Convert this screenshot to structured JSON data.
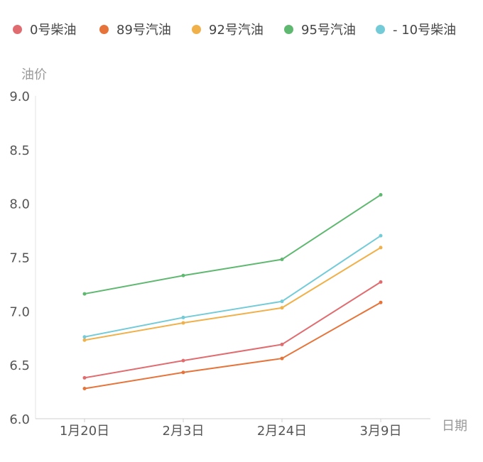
{
  "chart_data": {
    "type": "line",
    "title": "",
    "xlabel": "日期",
    "ylabel": "油价",
    "categories": [
      "1月20日",
      "2月3日",
      "2月24日",
      "3月9日"
    ],
    "ylim": [
      6.0,
      9.0
    ],
    "yticks": [
      "6.0",
      "6.5",
      "7.0",
      "7.5",
      "8.0",
      "8.5",
      "9.0"
    ],
    "legend_position": "top",
    "grid": false,
    "series": [
      {
        "name": "0号柴油",
        "color": "#e06c6f",
        "values": [
          6.38,
          6.54,
          6.69,
          7.27
        ]
      },
      {
        "name": "89号汽油",
        "color": "#e6743a",
        "values": [
          6.28,
          6.43,
          6.56,
          7.08
        ]
      },
      {
        "name": "92号汽油",
        "color": "#f0b04a",
        "values": [
          6.73,
          6.89,
          7.03,
          7.59
        ]
      },
      {
        "name": "95号汽油",
        "color": "#5fb870",
        "values": [
          7.16,
          7.33,
          7.48,
          8.08
        ]
      },
      {
        "name": "- 10号柴油",
        "color": "#74cbd8",
        "values": [
          6.76,
          6.94,
          7.09,
          7.7
        ]
      }
    ]
  }
}
